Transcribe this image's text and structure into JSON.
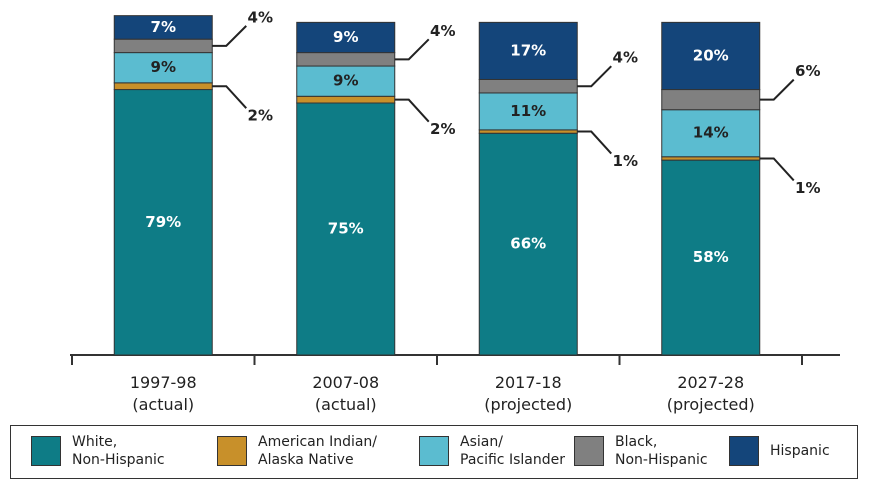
{
  "chart_data": {
    "type": "stacked_bar",
    "categories": [
      "1997-98\n(actual)",
      "2007-08\n(actual)",
      "2017-18\n(projected)",
      "2027-28\n(projected)"
    ],
    "series": [
      {
        "name": "White,\nNon-Hispanic",
        "color": "#0e7c86",
        "values": [
          79,
          75,
          66,
          58
        ],
        "value_labels": [
          "79%",
          "75%",
          "66%",
          "58%"
        ]
      },
      {
        "name": "American Indian/\nAlaska Native",
        "color": "#c8902a",
        "values": [
          2,
          2,
          1,
          1
        ],
        "value_labels": [
          "2%",
          "2%",
          "1%",
          "1%"
        ]
      },
      {
        "name": "Asian/\nPacific Islander",
        "color": "#5bbcd0",
        "values": [
          9,
          9,
          11,
          14
        ],
        "value_labels": [
          "9%",
          "9%",
          "11%",
          "14%"
        ]
      },
      {
        "name": "Black,\nNon-Hispanic",
        "color": "#808080",
        "values": [
          4,
          4,
          4,
          6
        ],
        "value_labels": [
          "4%",
          "4%",
          "4%",
          "6%"
        ]
      },
      {
        "name": "Hispanic",
        "color": "#14457a",
        "values": [
          7,
          9,
          17,
          20
        ],
        "value_labels": [
          "7%",
          "9%",
          "17%",
          "20%"
        ]
      }
    ]
  }
}
